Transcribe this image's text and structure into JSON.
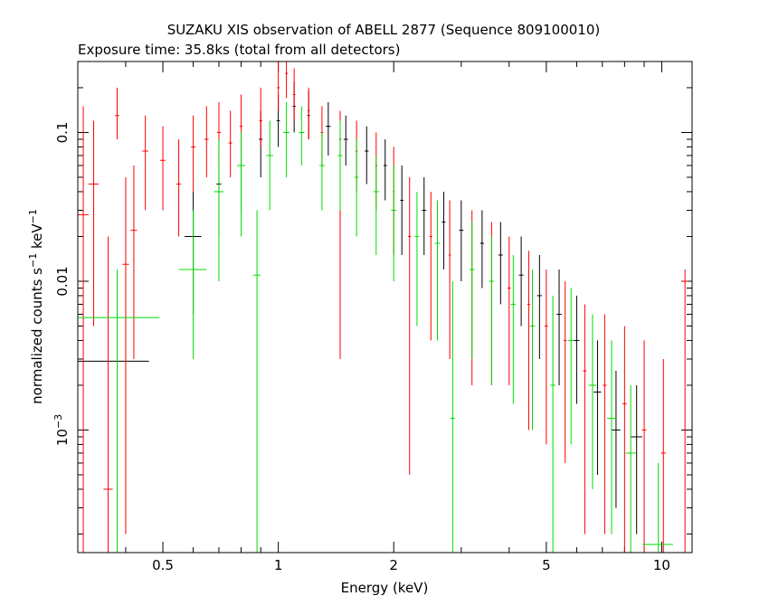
{
  "chart_data": {
    "type": "scatter",
    "title": "SUZAKU XIS observation of ABELL 2877 (Sequence 809100010)",
    "subtitle": "Exposure time: 35.8ks (total from all detectors)",
    "xlabel": "Energy (keV)",
    "ylabel": {
      "base": "normalized counts s",
      "exp1": "−1",
      "mid": " keV",
      "exp2": "−1"
    },
    "xscale": "log",
    "yscale": "log",
    "xlim": [
      0.3,
      12.0
    ],
    "ylim": [
      0.00015,
      0.3
    ],
    "x_ticks": [
      {
        "value": 0.5,
        "label": "0.5"
      },
      {
        "value": 1,
        "label": "1"
      },
      {
        "value": 2,
        "label": "2"
      },
      {
        "value": 5,
        "label": "5"
      },
      {
        "value": 10,
        "label": "10"
      }
    ],
    "y_ticks": [
      {
        "value": 0.1,
        "label": "0.1"
      },
      {
        "value": 0.01,
        "label": "0.01"
      },
      {
        "value": 0.001,
        "label": "10",
        "exp": "−3"
      }
    ],
    "grid": false,
    "series": [
      {
        "color": "#000000",
        "points": [
          {
            "x": 0.38,
            "y": 0.0029,
            "xerr": 0.08,
            "ylo": 0.00015,
            "yhi": 0.012
          },
          {
            "x": 0.6,
            "y": 0.02,
            "xerr": 0.03,
            "ylo": 0.006,
            "yhi": 0.04
          },
          {
            "x": 0.7,
            "y": 0.045,
            "xerr": 0.01,
            "ylo": 0.02,
            "yhi": 0.08
          },
          {
            "x": 0.8,
            "y": 0.06,
            "xerr": 0.01,
            "ylo": 0.03,
            "yhi": 0.1
          },
          {
            "x": 0.9,
            "y": 0.09,
            "xerr": 0.01,
            "ylo": 0.05,
            "yhi": 0.14
          },
          {
            "x": 1.0,
            "y": 0.12,
            "xerr": 0.01,
            "ylo": 0.08,
            "yhi": 0.18
          },
          {
            "x": 1.1,
            "y": 0.15,
            "xerr": 0.01,
            "ylo": 0.1,
            "yhi": 0.22
          },
          {
            "x": 1.2,
            "y": 0.13,
            "xerr": 0.01,
            "ylo": 0.09,
            "yhi": 0.19
          },
          {
            "x": 1.35,
            "y": 0.11,
            "xerr": 0.02,
            "ylo": 0.07,
            "yhi": 0.16
          },
          {
            "x": 1.5,
            "y": 0.09,
            "xerr": 0.02,
            "ylo": 0.06,
            "yhi": 0.13
          },
          {
            "x": 1.7,
            "y": 0.075,
            "xerr": 0.02,
            "ylo": 0.045,
            "yhi": 0.11
          },
          {
            "x": 1.9,
            "y": 0.06,
            "xerr": 0.02,
            "ylo": 0.035,
            "yhi": 0.09
          },
          {
            "x": 2.1,
            "y": 0.035,
            "xerr": 0.02,
            "ylo": 0.015,
            "yhi": 0.06
          },
          {
            "x": 2.4,
            "y": 0.03,
            "xerr": 0.03,
            "ylo": 0.015,
            "yhi": 0.05
          },
          {
            "x": 2.7,
            "y": 0.025,
            "xerr": 0.03,
            "ylo": 0.012,
            "yhi": 0.04
          },
          {
            "x": 3.0,
            "y": 0.022,
            "xerr": 0.04,
            "ylo": 0.01,
            "yhi": 0.035
          },
          {
            "x": 3.4,
            "y": 0.018,
            "xerr": 0.04,
            "ylo": 0.009,
            "yhi": 0.03
          },
          {
            "x": 3.8,
            "y": 0.015,
            "xerr": 0.05,
            "ylo": 0.007,
            "yhi": 0.025
          },
          {
            "x": 4.3,
            "y": 0.011,
            "xerr": 0.06,
            "ylo": 0.005,
            "yhi": 0.02
          },
          {
            "x": 4.8,
            "y": 0.008,
            "xerr": 0.07,
            "ylo": 0.003,
            "yhi": 0.015
          },
          {
            "x": 5.4,
            "y": 0.006,
            "xerr": 0.08,
            "ylo": 0.002,
            "yhi": 0.012
          },
          {
            "x": 6.0,
            "y": 0.004,
            "xerr": 0.1,
            "ylo": 0.0015,
            "yhi": 0.008
          },
          {
            "x": 6.8,
            "y": 0.0018,
            "xerr": 0.15,
            "ylo": 0.0005,
            "yhi": 0.004
          },
          {
            "x": 7.6,
            "y": 0.001,
            "xerr": 0.2,
            "ylo": 0.0003,
            "yhi": 0.0025
          },
          {
            "x": 8.6,
            "y": 0.0009,
            "xerr": 0.3,
            "ylo": 0.0002,
            "yhi": 0.002
          }
        ]
      },
      {
        "color": "#ff0000",
        "points": [
          {
            "x": 0.31,
            "y": 0.028,
            "xerr": 0.01,
            "ylo": 0.00015,
            "yhi": 0.15
          },
          {
            "x": 0.33,
            "y": 0.045,
            "xerr": 0.01,
            "ylo": 0.005,
            "yhi": 0.12
          },
          {
            "x": 0.36,
            "y": 0.0004,
            "xerr": 0.01,
            "ylo": 0.00015,
            "yhi": 0.02
          },
          {
            "x": 0.38,
            "y": 0.13,
            "xerr": 0.005,
            "ylo": 0.09,
            "yhi": 0.2
          },
          {
            "x": 0.4,
            "y": 0.013,
            "xerr": 0.008,
            "ylo": 0.0002,
            "yhi": 0.05
          },
          {
            "x": 0.42,
            "y": 0.022,
            "xerr": 0.008,
            "ylo": 0.003,
            "yhi": 0.06
          },
          {
            "x": 0.45,
            "y": 0.075,
            "xerr": 0.008,
            "ylo": 0.03,
            "yhi": 0.13
          },
          {
            "x": 0.5,
            "y": 0.065,
            "xerr": 0.008,
            "ylo": 0.03,
            "yhi": 0.11
          },
          {
            "x": 0.55,
            "y": 0.045,
            "xerr": 0.008,
            "ylo": 0.02,
            "yhi": 0.09
          },
          {
            "x": 0.6,
            "y": 0.08,
            "xerr": 0.008,
            "ylo": 0.04,
            "yhi": 0.13
          },
          {
            "x": 0.65,
            "y": 0.09,
            "xerr": 0.008,
            "ylo": 0.05,
            "yhi": 0.15
          },
          {
            "x": 0.7,
            "y": 0.1,
            "xerr": 0.008,
            "ylo": 0.06,
            "yhi": 0.16
          },
          {
            "x": 0.75,
            "y": 0.085,
            "xerr": 0.008,
            "ylo": 0.05,
            "yhi": 0.14
          },
          {
            "x": 0.8,
            "y": 0.11,
            "xerr": 0.008,
            "ylo": 0.07,
            "yhi": 0.18
          },
          {
            "x": 0.9,
            "y": 0.12,
            "xerr": 0.008,
            "ylo": 0.08,
            "yhi": 0.2
          },
          {
            "x": 1.0,
            "y": 0.2,
            "xerr": 0.008,
            "ylo": 0.14,
            "yhi": 0.3
          },
          {
            "x": 1.05,
            "y": 0.25,
            "xerr": 0.008,
            "ylo": 0.17,
            "yhi": 0.3
          },
          {
            "x": 1.1,
            "y": 0.18,
            "xerr": 0.008,
            "ylo": 0.12,
            "yhi": 0.27
          },
          {
            "x": 1.2,
            "y": 0.14,
            "xerr": 0.008,
            "ylo": 0.09,
            "yhi": 0.2
          },
          {
            "x": 1.3,
            "y": 0.1,
            "xerr": 0.01,
            "ylo": 0.06,
            "yhi": 0.15
          },
          {
            "x": 1.45,
            "y": 0.09,
            "xerr": 0.01,
            "ylo": 0.003,
            "yhi": 0.14
          },
          {
            "x": 1.6,
            "y": 0.075,
            "xerr": 0.01,
            "ylo": 0.04,
            "yhi": 0.12
          },
          {
            "x": 1.8,
            "y": 0.06,
            "xerr": 0.01,
            "ylo": 0.03,
            "yhi": 0.1
          },
          {
            "x": 2.0,
            "y": 0.04,
            "xerr": 0.01,
            "ylo": 0.015,
            "yhi": 0.08
          },
          {
            "x": 2.2,
            "y": 0.02,
            "xerr": 0.02,
            "ylo": 0.0005,
            "yhi": 0.05
          },
          {
            "x": 2.5,
            "y": 0.02,
            "xerr": 0.02,
            "ylo": 0.004,
            "yhi": 0.04
          },
          {
            "x": 2.8,
            "y": 0.015,
            "xerr": 0.02,
            "ylo": 0.003,
            "yhi": 0.035
          },
          {
            "x": 3.2,
            "y": 0.012,
            "xerr": 0.03,
            "ylo": 0.002,
            "yhi": 0.03
          },
          {
            "x": 3.6,
            "y": 0.01,
            "xerr": 0.03,
            "ylo": 0.002,
            "yhi": 0.025
          },
          {
            "x": 4.0,
            "y": 0.009,
            "xerr": 0.04,
            "ylo": 0.002,
            "yhi": 0.02
          },
          {
            "x": 4.5,
            "y": 0.007,
            "xerr": 0.04,
            "ylo": 0.001,
            "yhi": 0.016
          },
          {
            "x": 5.0,
            "y": 0.005,
            "xerr": 0.05,
            "ylo": 0.0008,
            "yhi": 0.012
          },
          {
            "x": 5.6,
            "y": 0.004,
            "xerr": 0.05,
            "ylo": 0.0006,
            "yhi": 0.01
          },
          {
            "x": 6.3,
            "y": 0.0025,
            "xerr": 0.07,
            "ylo": 0.0002,
            "yhi": 0.007
          },
          {
            "x": 7.1,
            "y": 0.002,
            "xerr": 0.08,
            "ylo": 0.0002,
            "yhi": 0.006
          },
          {
            "x": 8.0,
            "y": 0.0015,
            "xerr": 0.1,
            "ylo": 0.00015,
            "yhi": 0.005
          },
          {
            "x": 9.0,
            "y": 0.001,
            "xerr": 0.12,
            "ylo": 0.00015,
            "yhi": 0.004
          },
          {
            "x": 10.1,
            "y": 0.0007,
            "xerr": 0.15,
            "ylo": 0.00015,
            "yhi": 0.003
          },
          {
            "x": 11.5,
            "y": 0.01,
            "xerr": 0.2,
            "ylo": 0.00015,
            "yhi": 0.012
          }
        ]
      },
      {
        "color": "#00dd00",
        "points": [
          {
            "x": 0.38,
            "y": 0.0057,
            "xerr": 0.11,
            "ylo": 0.00015,
            "yhi": 0.012
          },
          {
            "x": 0.6,
            "y": 0.012,
            "xerr": 0.05,
            "ylo": 0.003,
            "yhi": 0.03
          },
          {
            "x": 0.7,
            "y": 0.04,
            "xerr": 0.02,
            "ylo": 0.01,
            "yhi": 0.09
          },
          {
            "x": 0.8,
            "y": 0.06,
            "xerr": 0.02,
            "ylo": 0.02,
            "yhi": 0.1
          },
          {
            "x": 0.88,
            "y": 0.011,
            "xerr": 0.02,
            "ylo": 0.00015,
            "yhi": 0.03
          },
          {
            "x": 0.95,
            "y": 0.07,
            "xerr": 0.02,
            "ylo": 0.03,
            "yhi": 0.12
          },
          {
            "x": 1.05,
            "y": 0.1,
            "xerr": 0.02,
            "ylo": 0.05,
            "yhi": 0.16
          },
          {
            "x": 1.15,
            "y": 0.1,
            "xerr": 0.02,
            "ylo": 0.06,
            "yhi": 0.15
          },
          {
            "x": 1.3,
            "y": 0.06,
            "xerr": 0.02,
            "ylo": 0.03,
            "yhi": 0.1
          },
          {
            "x": 1.45,
            "y": 0.07,
            "xerr": 0.02,
            "ylo": 0.03,
            "yhi": 0.12
          },
          {
            "x": 1.6,
            "y": 0.05,
            "xerr": 0.02,
            "ylo": 0.02,
            "yhi": 0.09
          },
          {
            "x": 1.8,
            "y": 0.04,
            "xerr": 0.03,
            "ylo": 0.015,
            "yhi": 0.07
          },
          {
            "x": 2.0,
            "y": 0.03,
            "xerr": 0.03,
            "ylo": 0.01,
            "yhi": 0.06
          },
          {
            "x": 2.3,
            "y": 0.02,
            "xerr": 0.03,
            "ylo": 0.005,
            "yhi": 0.04
          },
          {
            "x": 2.6,
            "y": 0.018,
            "xerr": 0.04,
            "ylo": 0.004,
            "yhi": 0.035
          },
          {
            "x": 2.85,
            "y": 0.0012,
            "xerr": 0.04,
            "ylo": 0.00015,
            "yhi": 0.01
          },
          {
            "x": 3.2,
            "y": 0.012,
            "xerr": 0.05,
            "ylo": 0.003,
            "yhi": 0.025
          },
          {
            "x": 3.6,
            "y": 0.01,
            "xerr": 0.05,
            "ylo": 0.002,
            "yhi": 0.02
          },
          {
            "x": 4.1,
            "y": 0.007,
            "xerr": 0.06,
            "ylo": 0.0015,
            "yhi": 0.015
          },
          {
            "x": 4.6,
            "y": 0.005,
            "xerr": 0.07,
            "ylo": 0.001,
            "yhi": 0.012
          },
          {
            "x": 5.2,
            "y": 0.002,
            "xerr": 0.08,
            "ylo": 0.00015,
            "yhi": 0.008
          },
          {
            "x": 5.8,
            "y": 0.004,
            "xerr": 0.1,
            "ylo": 0.0008,
            "yhi": 0.009
          },
          {
            "x": 6.6,
            "y": 0.002,
            "xerr": 0.15,
            "ylo": 0.0004,
            "yhi": 0.006
          },
          {
            "x": 7.4,
            "y": 0.0012,
            "xerr": 0.2,
            "ylo": 0.0002,
            "yhi": 0.004
          },
          {
            "x": 8.3,
            "y": 0.0007,
            "xerr": 0.25,
            "ylo": 0.00015,
            "yhi": 0.002
          },
          {
            "x": 9.8,
            "y": 0.00017,
            "xerr": 0.9,
            "ylo": 0.00015,
            "yhi": 0.0006
          }
        ]
      }
    ]
  }
}
